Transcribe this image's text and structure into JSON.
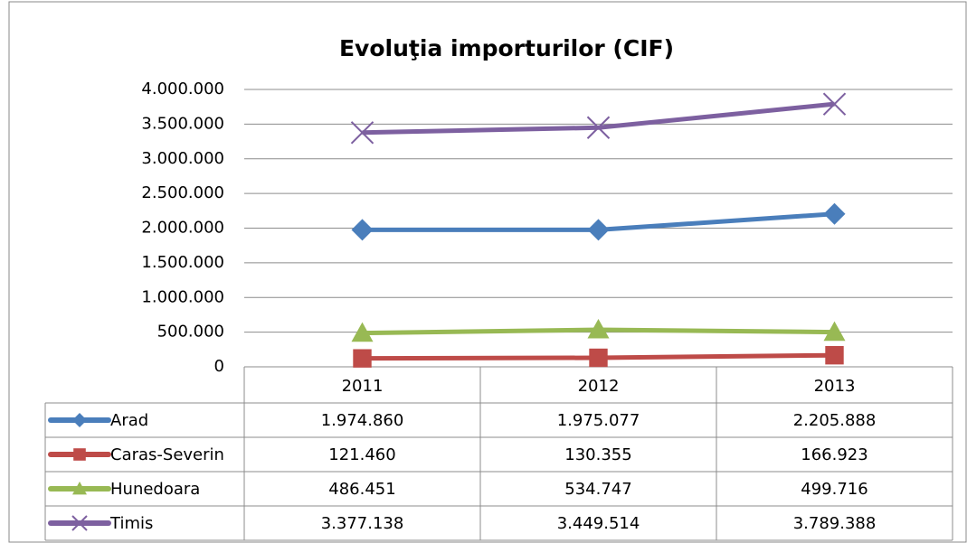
{
  "chart_data": {
    "type": "line",
    "title": "Evoluţia importurilor (CIF)",
    "categories": [
      "2011",
      "2012",
      "2013"
    ],
    "series": [
      {
        "name": "Arad",
        "color": "#4a7ebb",
        "marker": "diamond",
        "values": [
          1974860,
          1975077,
          2205888
        ],
        "value_labels": [
          "1.974.860",
          "1.975.077",
          "2.205.888"
        ]
      },
      {
        "name": "Caras-Severin",
        "color": "#be4b48",
        "marker": "square",
        "values": [
          121460,
          130355,
          166923
        ],
        "value_labels": [
          "121.460",
          "130.355",
          "166.923"
        ]
      },
      {
        "name": "Hunedoara",
        "color": "#98b954",
        "marker": "triangle",
        "values": [
          486451,
          534747,
          499716
        ],
        "value_labels": [
          "486.451",
          "534.747",
          "499.716"
        ]
      },
      {
        "name": "Timis",
        "color": "#7d60a0",
        "marker": "x",
        "values": [
          3377138,
          3449514,
          3789388
        ],
        "value_labels": [
          "3.377.138",
          "3.449.514",
          "3.789.388"
        ]
      }
    ],
    "ylim": [
      0,
      4000000
    ],
    "yticks": [
      0,
      {
        "value": 500000,
        "label": "500.000"
      },
      {
        "value": 1000000,
        "label": "1.000.000"
      },
      {
        "value": 1500000,
        "label": "1.500.000"
      },
      {
        "value": 2000000,
        "label": "2.000.000"
      },
      {
        "value": 2500000,
        "label": "2.500.000"
      },
      {
        "value": 3000000,
        "label": "3.000.000"
      },
      {
        "value": 3500000,
        "label": "3.500.000"
      },
      {
        "value": 4000000,
        "label": "4.000.000"
      }
    ],
    "grid": true,
    "data_table": true
  }
}
